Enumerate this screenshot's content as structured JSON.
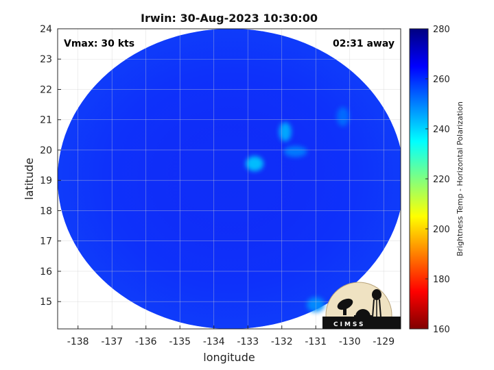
{
  "chart_data": {
    "type": "heatmap",
    "title": "Irwin: 30-Aug-2023 10:30:00",
    "xlabel": "longitude",
    "ylabel": "latitude",
    "xlim": [
      -138.6,
      -128.5
    ],
    "ylim": [
      14.1,
      24
    ],
    "x_ticks": [
      -138,
      -137,
      -136,
      -135,
      -134,
      -133,
      -132,
      -131,
      -130,
      -129
    ],
    "y_ticks": [
      15,
      16,
      17,
      18,
      19,
      20,
      21,
      22,
      23,
      24
    ],
    "grid": true,
    "annotations": {
      "vmax": "Vmax: 30 kts",
      "time_away": "02:31 away"
    },
    "colorbar": {
      "label": "Brightness Temp - Horizontal Polarization",
      "range": [
        160,
        280
      ],
      "ticks": [
        160,
        180,
        200,
        220,
        240,
        260,
        280
      ],
      "colormap": "jet",
      "colors": [
        "#800000",
        "#ff0000",
        "#ff8000",
        "#ffff00",
        "#80ff80",
        "#00ffff",
        "#0080ff",
        "#0000ff",
        "#000080"
      ]
    },
    "swath": {
      "center": [
        -133.5,
        19.05
      ],
      "radius_lon": 5.1,
      "radius_lat": 4.95,
      "background_value": 262,
      "features": [
        {
          "lon": -131.9,
          "lat": 20.6,
          "value": 244
        },
        {
          "lon": -132.8,
          "lat": 19.55,
          "value": 241
        },
        {
          "lon": -131.6,
          "lat": 19.95,
          "value": 250
        },
        {
          "lon": -130.2,
          "lat": 21.1,
          "value": 252
        },
        {
          "lon": -131.0,
          "lat": 14.9,
          "value": 248
        }
      ]
    }
  },
  "logo": {
    "text": "CIMSS"
  }
}
